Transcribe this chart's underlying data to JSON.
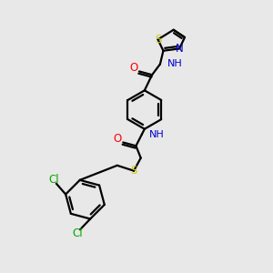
{
  "background_color": "#e8e8e8",
  "figsize": [
    3.0,
    3.0
  ],
  "dpi": 100,
  "colors": {
    "C": "#000000",
    "N": "#0000cd",
    "O": "#ff0000",
    "S": "#cccc00",
    "Cl": "#00aa00",
    "bond": "#000000"
  }
}
